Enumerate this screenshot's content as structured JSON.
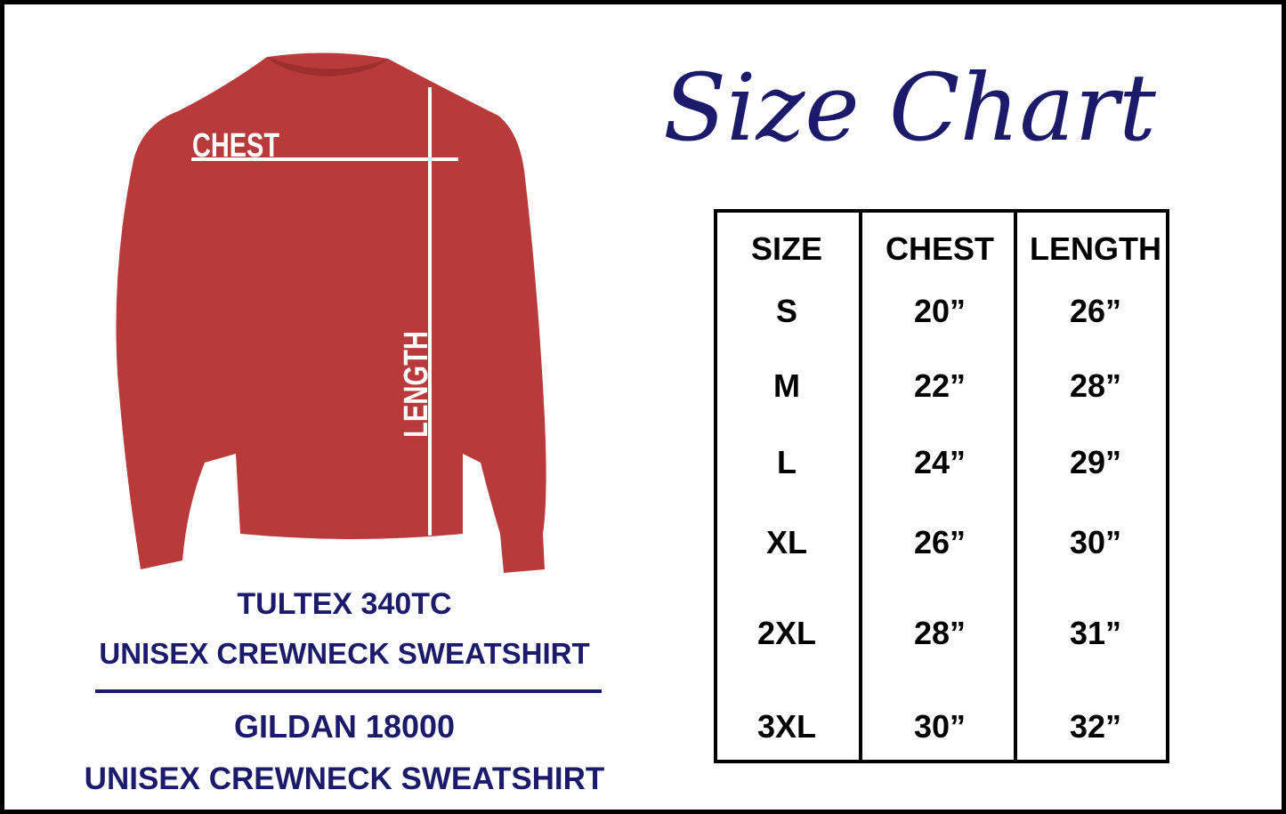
{
  "title": "Size Chart",
  "shirt": {
    "chest_label": "CHEST",
    "length_label": "LENGTH",
    "color": "#b83a3a"
  },
  "products": [
    {
      "brand": "TULTEX 340TC",
      "description": "UNISEX CREWNECK SWEATSHIRT"
    },
    {
      "brand": "GILDAN 18000",
      "description": "UNISEX CREWNECK SWEATSHIRT"
    }
  ],
  "table": {
    "headers": [
      "SIZE",
      "CHEST",
      "LENGTH"
    ],
    "rows": [
      [
        "S",
        "20”",
        "26”"
      ],
      [
        "M",
        "22”",
        "28”"
      ],
      [
        "L",
        "24”",
        "29”"
      ],
      [
        "XL",
        "26”",
        "30”"
      ],
      [
        "2XL",
        "28”",
        "31”"
      ],
      [
        "3XL",
        "30”",
        "32”"
      ]
    ]
  },
  "colors": {
    "navy": "#1c1a6b",
    "shirt_red": "#b83a3a"
  }
}
